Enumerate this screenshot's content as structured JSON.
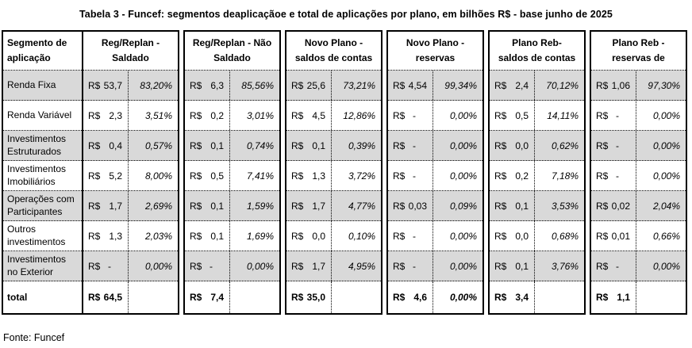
{
  "title": "Tabela 3 - Funcef: segmentos deaplicaçãoe e total de aplicações por plano, em bilhões R$ - base junho de 2025",
  "source": "Fonte: Funcef",
  "currency_symbol": "R$",
  "colors": {
    "row_shading": "#d9d9d9",
    "border": "#000000",
    "background": "#ffffff"
  },
  "table": {
    "segment_header": "Segmento de aplicação",
    "groups": [
      {
        "line1": "Reg/Replan  -",
        "line2": "Saldado"
      },
      {
        "line1": "Reg/Replan - Não",
        "line2": "Saldado"
      },
      {
        "line1": "Novo Plano -",
        "line2": "saldos de contas"
      },
      {
        "line1": "Novo Plano -",
        "line2": "reservas"
      },
      {
        "line1": "Plano Reb-",
        "line2": "saldos de contas"
      },
      {
        "line1": "Plano Reb -",
        "line2": "reservas de"
      }
    ],
    "rows": [
      {
        "label": "Renda Fixa",
        "shaded": true,
        "cells": [
          {
            "v": "53,7",
            "p": "83,20%"
          },
          {
            "v": "6,3",
            "p": "85,56%"
          },
          {
            "v": "25,6",
            "p": "73,21%"
          },
          {
            "v": "4,54",
            "p": "99,34%"
          },
          {
            "v": "2,4",
            "p": "70,12%"
          },
          {
            "v": "1,06",
            "p": "97,30%"
          }
        ]
      },
      {
        "label": "Renda Variável",
        "shaded": false,
        "cells": [
          {
            "v": "2,3",
            "p": "3,51%"
          },
          {
            "v": "0,2",
            "p": "3,01%"
          },
          {
            "v": "4,5",
            "p": "12,86%"
          },
          {
            "v": "-",
            "p": "0,00%"
          },
          {
            "v": "0,5",
            "p": "14,11%"
          },
          {
            "v": "-",
            "p": "0,00%"
          }
        ]
      },
      {
        "label": "Investimentos Estruturados",
        "shaded": true,
        "cells": [
          {
            "v": "0,4",
            "p": "0,57%"
          },
          {
            "v": "0,1",
            "p": "0,74%"
          },
          {
            "v": "0,1",
            "p": "0,39%"
          },
          {
            "v": "-",
            "p": "0,00%"
          },
          {
            "v": "0,0",
            "p": "0,62%"
          },
          {
            "v": "-",
            "p": "0,00%"
          }
        ]
      },
      {
        "label": "Investimentos Imobiliários",
        "shaded": false,
        "cells": [
          {
            "v": "5,2",
            "p": "8,00%"
          },
          {
            "v": "0,5",
            "p": "7,41%"
          },
          {
            "v": "1,3",
            "p": "3,72%"
          },
          {
            "v": "-",
            "p": "0,00%"
          },
          {
            "v": "0,2",
            "p": "7,18%"
          },
          {
            "v": "-",
            "p": "0,00%"
          }
        ]
      },
      {
        "label": "Operações com Participantes",
        "shaded": true,
        "cells": [
          {
            "v": "1,7",
            "p": "2,69%"
          },
          {
            "v": "0,1",
            "p": "1,59%"
          },
          {
            "v": "1,7",
            "p": "4,77%"
          },
          {
            "v": "0,03",
            "p": "0,09%"
          },
          {
            "v": "0,1",
            "p": "3,53%"
          },
          {
            "v": "0,02",
            "p": "2,04%"
          }
        ]
      },
      {
        "label": "Outros investimentos",
        "shaded": false,
        "cells": [
          {
            "v": "1,3",
            "p": "2,03%"
          },
          {
            "v": "0,1",
            "p": "1,69%"
          },
          {
            "v": "0,0",
            "p": "0,10%"
          },
          {
            "v": "-",
            "p": "0,00%"
          },
          {
            "v": "0,0",
            "p": "0,68%"
          },
          {
            "v": "0,01",
            "p": "0,66%"
          }
        ]
      },
      {
        "label": "Investimentos no Exterior",
        "shaded": true,
        "cells": [
          {
            "v": "-",
            "p": "0,00%"
          },
          {
            "v": "-",
            "p": "0,00%"
          },
          {
            "v": "1,7",
            "p": "4,95%"
          },
          {
            "v": "-",
            "p": "0,00%"
          },
          {
            "v": "0,1",
            "p": "3,76%"
          },
          {
            "v": "-",
            "p": "0,00%"
          }
        ]
      }
    ],
    "total": {
      "label": "total",
      "cells": [
        {
          "v": "64,5",
          "p": ""
        },
        {
          "v": "7,4",
          "p": ""
        },
        {
          "v": "35,0",
          "p": ""
        },
        {
          "v": "4,6",
          "p": "0,00%"
        },
        {
          "v": "3,4",
          "p": ""
        },
        {
          "v": "1,1",
          "p": ""
        }
      ]
    }
  }
}
